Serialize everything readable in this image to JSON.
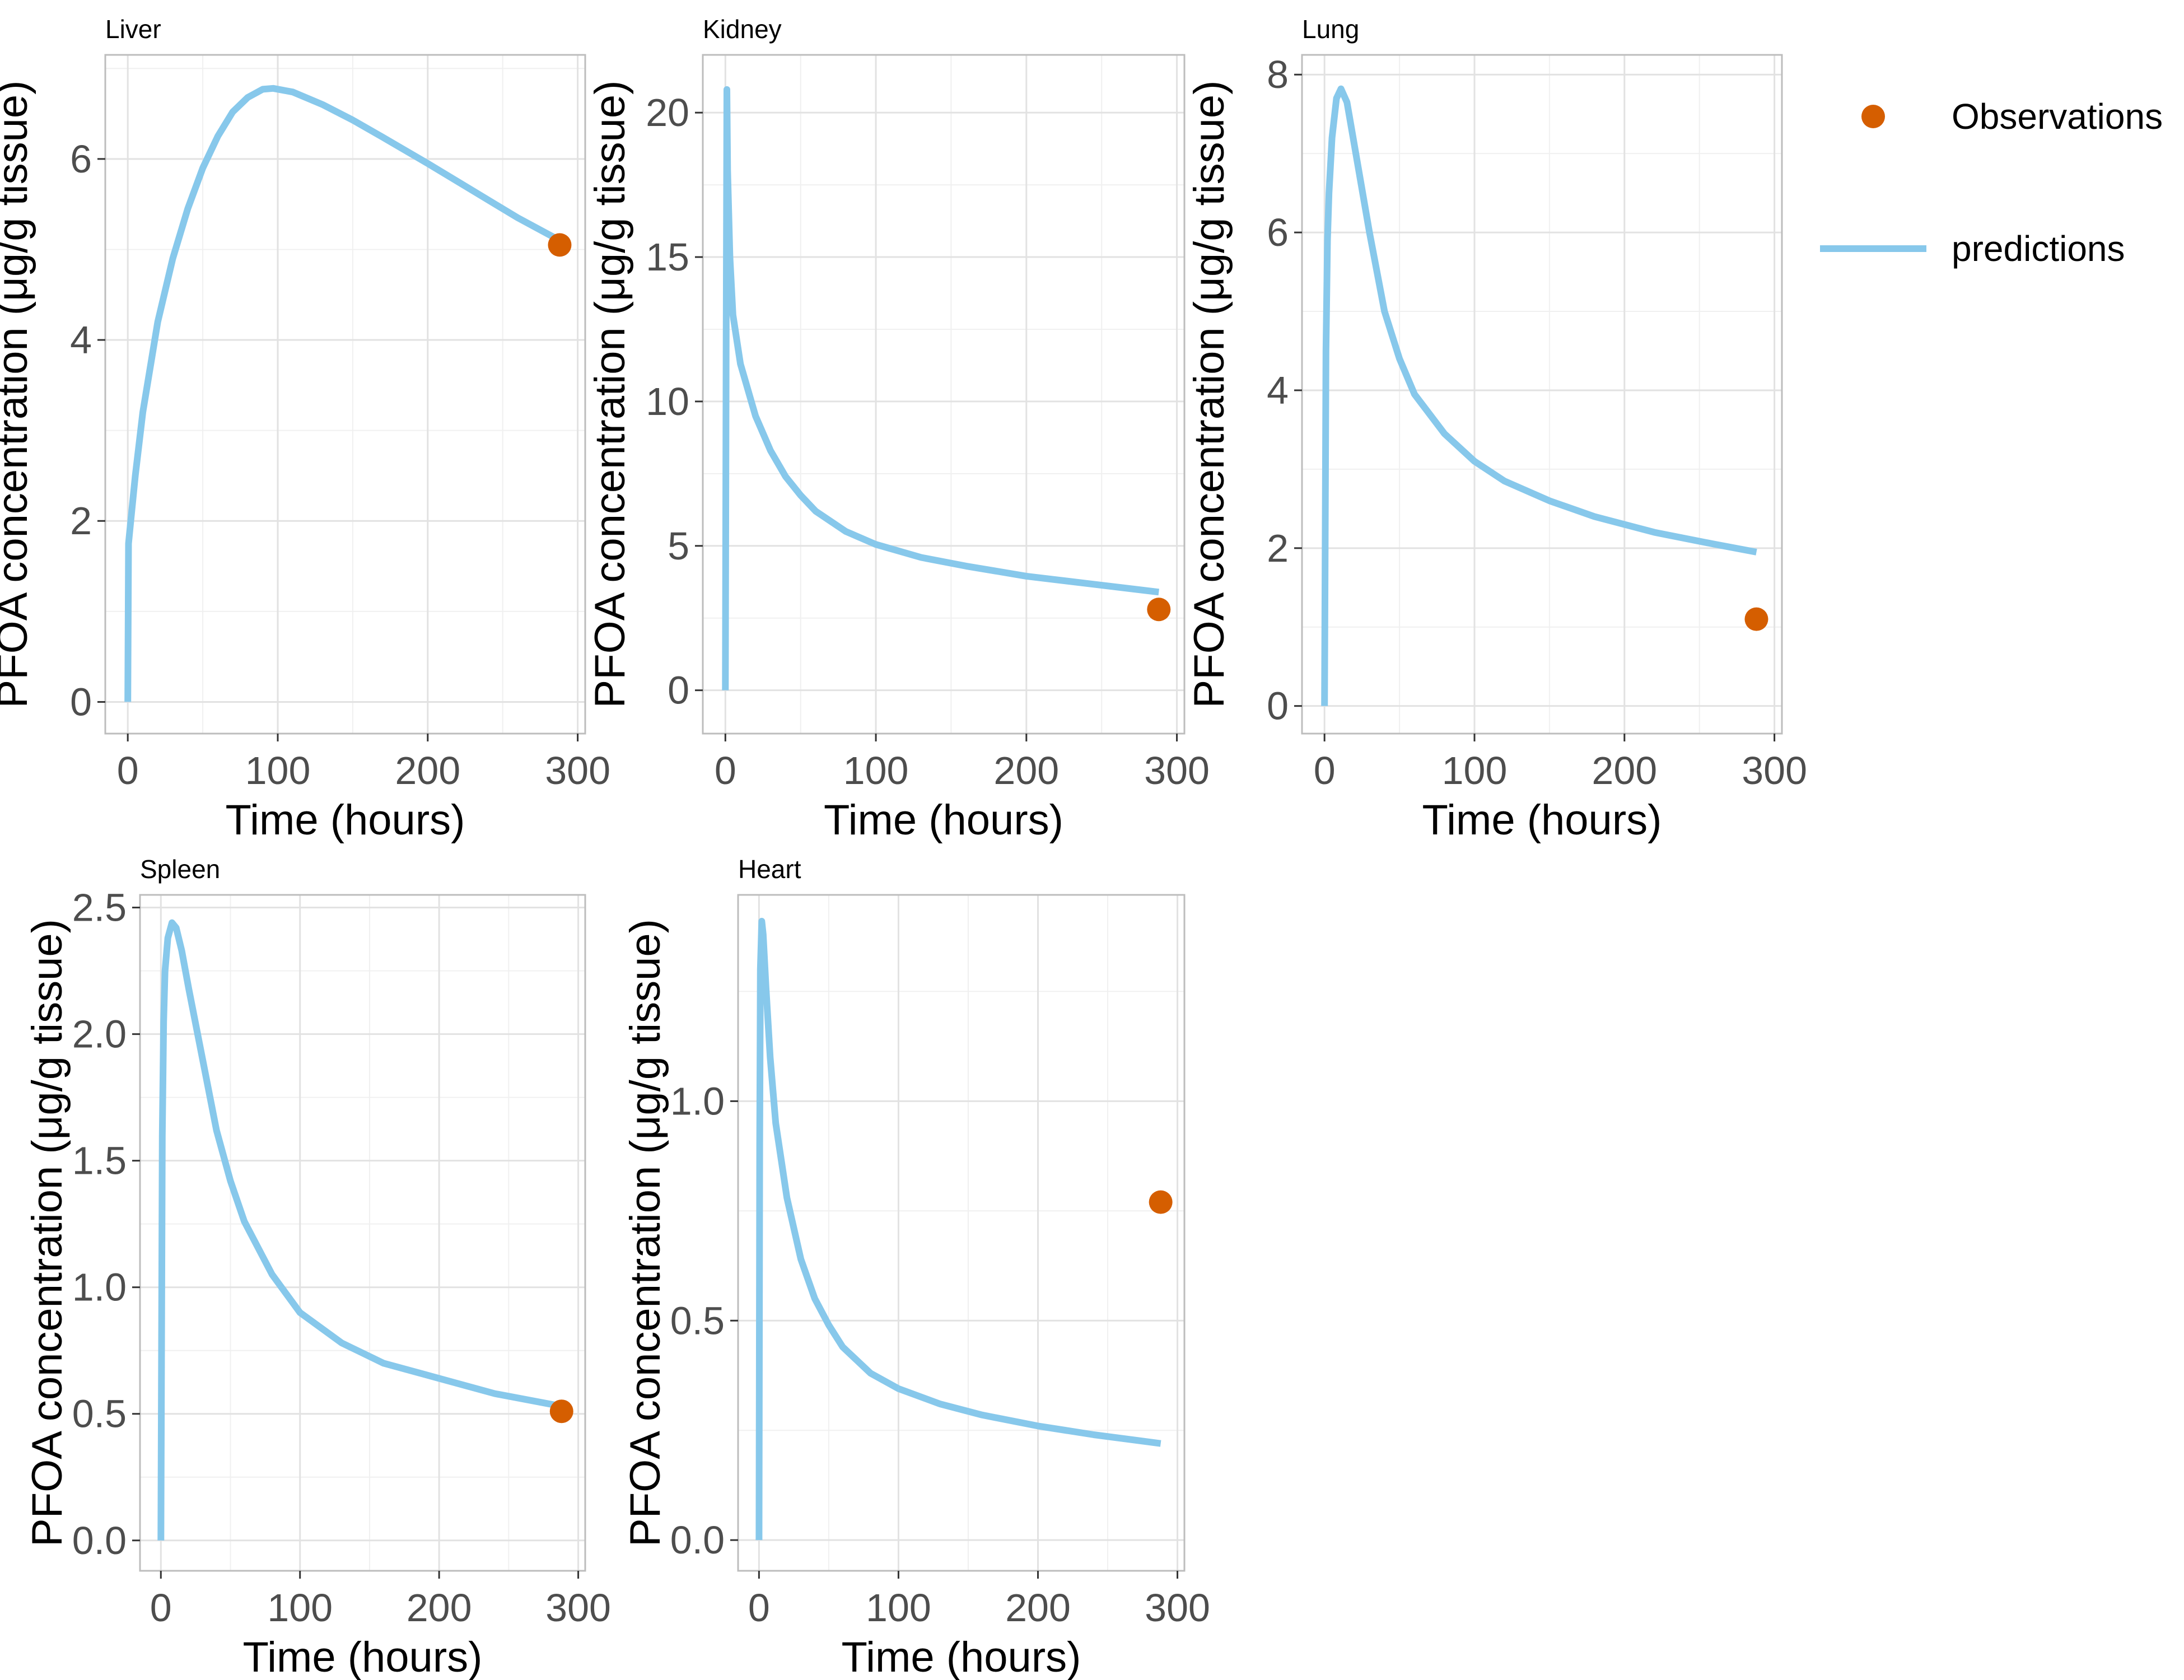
{
  "colors": {
    "observations": "#D55E00",
    "predictions": "#87C8EB",
    "grid_major": "#e2e2e2",
    "grid_minor": "#f0f0f0",
    "panel_border": "#bdbdbd",
    "tick_text": "#4d4d4d"
  },
  "legend": {
    "position": "right",
    "items": [
      {
        "label": "Observations",
        "kind": "point"
      },
      {
        "label": "predictions",
        "kind": "line"
      }
    ]
  },
  "chart_data": [
    {
      "type": "line",
      "title": "Liver",
      "xlabel": "Time (hours)",
      "ylabel": "PFOA concentration (μg/g tissue)",
      "xlim": [
        -15,
        305
      ],
      "ylim": [
        -0.35,
        7.15
      ],
      "xticks": [
        0,
        100,
        200,
        300
      ],
      "xtick_labels": [
        "0",
        "100",
        "200",
        "300"
      ],
      "yticks": [
        0,
        2,
        4,
        6
      ],
      "ytick_labels": [
        "0",
        "2",
        "4",
        "6"
      ],
      "grid": true,
      "series": [
        {
          "name": "predictions",
          "x": [
            0,
            0.5,
            2,
            5,
            10,
            20,
            30,
            40,
            50,
            60,
            70,
            80,
            90,
            97,
            110,
            130,
            150,
            170,
            200,
            230,
            260,
            288
          ],
          "y": [
            0,
            1.75,
            2.0,
            2.5,
            3.2,
            4.2,
            4.9,
            5.45,
            5.9,
            6.25,
            6.52,
            6.68,
            6.77,
            6.78,
            6.74,
            6.6,
            6.43,
            6.24,
            5.95,
            5.65,
            5.35,
            5.1
          ]
        },
        {
          "name": "Observations",
          "x": [
            288
          ],
          "y": [
            5.05
          ]
        }
      ]
    },
    {
      "type": "line",
      "title": "Kidney",
      "xlabel": "Time (hours)",
      "ylabel": "PFOA concentration (μg/g tissue)",
      "xlim": [
        -15,
        305
      ],
      "ylim": [
        -1.5,
        22.0
      ],
      "xticks": [
        0,
        100,
        200,
        300
      ],
      "xtick_labels": [
        "0",
        "100",
        "200",
        "300"
      ],
      "yticks": [
        0,
        5,
        10,
        15,
        20
      ],
      "ytick_labels": [
        "0",
        "5",
        "10",
        "15",
        "20"
      ],
      "grid": true,
      "series": [
        {
          "name": "predictions",
          "x": [
            0,
            0.5,
            1,
            1.5,
            3,
            5,
            10,
            20,
            30,
            40,
            50,
            60,
            80,
            100,
            130,
            160,
            200,
            240,
            288
          ],
          "y": [
            0,
            12,
            20.8,
            18.0,
            15.0,
            13.0,
            11.3,
            9.5,
            8.3,
            7.4,
            6.75,
            6.2,
            5.5,
            5.05,
            4.6,
            4.3,
            3.95,
            3.7,
            3.4
          ]
        },
        {
          "name": "Observations",
          "x": [
            288
          ],
          "y": [
            2.8
          ]
        }
      ]
    },
    {
      "type": "line",
      "title": "Lung",
      "xlabel": "Time (hours)",
      "ylabel": "PFOA concentration (μg/g tissue)",
      "xlim": [
        -15,
        305
      ],
      "ylim": [
        -0.35,
        8.25
      ],
      "xticks": [
        0,
        100,
        200,
        300
      ],
      "xtick_labels": [
        "0",
        "100",
        "200",
        "300"
      ],
      "yticks": [
        0,
        2,
        4,
        6,
        8
      ],
      "ytick_labels": [
        "0",
        "2",
        "4",
        "6",
        "8"
      ],
      "grid": true,
      "series": [
        {
          "name": "predictions",
          "x": [
            0,
            1,
            2,
            3,
            5,
            8,
            11,
            15,
            20,
            30,
            40,
            50,
            60,
            80,
            100,
            120,
            150,
            180,
            220,
            260,
            288
          ],
          "y": [
            0,
            4.5,
            5.9,
            6.5,
            7.2,
            7.7,
            7.82,
            7.65,
            7.1,
            6.0,
            5.0,
            4.4,
            3.95,
            3.45,
            3.1,
            2.85,
            2.6,
            2.4,
            2.2,
            2.05,
            1.95
          ]
        },
        {
          "name": "Observations",
          "x": [
            288
          ],
          "y": [
            1.1
          ]
        }
      ]
    },
    {
      "type": "line",
      "title": "Spleen",
      "xlabel": "Time (hours)",
      "ylabel": "PFOA concentration (μg/g tissue)",
      "xlim": [
        -15,
        305
      ],
      "ylim": [
        -0.12,
        2.55
      ],
      "xticks": [
        0,
        100,
        200,
        300
      ],
      "xtick_labels": [
        "0",
        "100",
        "200",
        "300"
      ],
      "yticks": [
        0,
        0.5,
        1.0,
        1.5,
        2.0,
        2.5
      ],
      "ytick_labels": [
        "0.0",
        "0.5",
        "1.0",
        "1.5",
        "2.0",
        "2.5"
      ],
      "grid": true,
      "series": [
        {
          "name": "predictions",
          "x": [
            0,
            1,
            2,
            3,
            5,
            8,
            11,
            15,
            20,
            30,
            40,
            50,
            60,
            80,
            100,
            130,
            160,
            200,
            240,
            288
          ],
          "y": [
            0,
            1.6,
            2.05,
            2.25,
            2.38,
            2.44,
            2.42,
            2.33,
            2.18,
            1.9,
            1.62,
            1.42,
            1.26,
            1.05,
            0.9,
            0.78,
            0.7,
            0.64,
            0.58,
            0.53
          ]
        },
        {
          "name": "Observations",
          "x": [
            288
          ],
          "y": [
            0.51
          ]
        }
      ]
    },
    {
      "type": "line",
      "title": "Heart",
      "xlabel": "Time (hours)",
      "ylabel": "PFOA concentration (μg/g tissue)",
      "xlim": [
        -15,
        305
      ],
      "ylim": [
        -0.07,
        1.47
      ],
      "xticks": [
        0,
        100,
        200,
        300
      ],
      "xtick_labels": [
        "0",
        "100",
        "200",
        "300"
      ],
      "yticks": [
        0,
        0.5,
        1.0
      ],
      "ytick_labels": [
        "0.0",
        "0.5",
        "1.0"
      ],
      "grid": true,
      "series": [
        {
          "name": "predictions",
          "x": [
            0,
            0.5,
            1,
            2,
            3,
            5,
            8,
            12,
            20,
            30,
            40,
            50,
            60,
            80,
            100,
            130,
            160,
            200,
            240,
            288
          ],
          "y": [
            0,
            0.9,
            1.3,
            1.41,
            1.38,
            1.26,
            1.1,
            0.95,
            0.78,
            0.64,
            0.55,
            0.49,
            0.44,
            0.38,
            0.345,
            0.31,
            0.285,
            0.26,
            0.24,
            0.22
          ]
        },
        {
          "name": "Observations",
          "x": [
            288
          ],
          "y": [
            0.77
          ]
        }
      ]
    }
  ]
}
